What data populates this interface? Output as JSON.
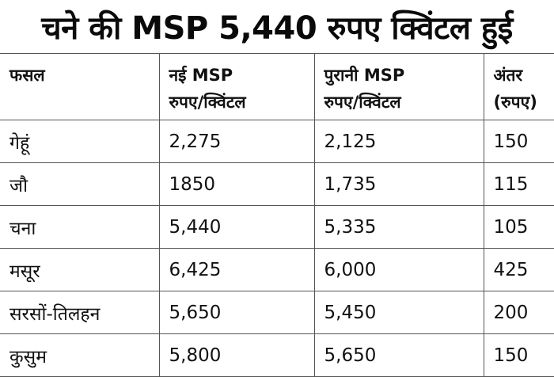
{
  "headline": "चने की MSP 5,440 रुपए क्विंटल हुई",
  "table": {
    "headers": [
      {
        "line1": "फसल",
        "line2": ""
      },
      {
        "line1": "नई MSP",
        "line2": "रुपए/क्विंटल"
      },
      {
        "line1": "पुरानी MSP",
        "line2": "रुपए/क्विंटल"
      },
      {
        "line1": "अंतर",
        "line2": "(रुपए)"
      }
    ],
    "rows": [
      [
        "गेहूं",
        "2,275",
        "2,125",
        "150"
      ],
      [
        "जौ",
        "1850",
        "1,735",
        "115"
      ],
      [
        "चना",
        "5,440",
        "5,335",
        "105"
      ],
      [
        "मसूर",
        "6,425",
        "6,000",
        "425"
      ],
      [
        "सरसों-तिलहन",
        "5,650",
        "5,450",
        "200"
      ],
      [
        "कुसुम",
        "5,800",
        "5,650",
        "150"
      ]
    ]
  }
}
